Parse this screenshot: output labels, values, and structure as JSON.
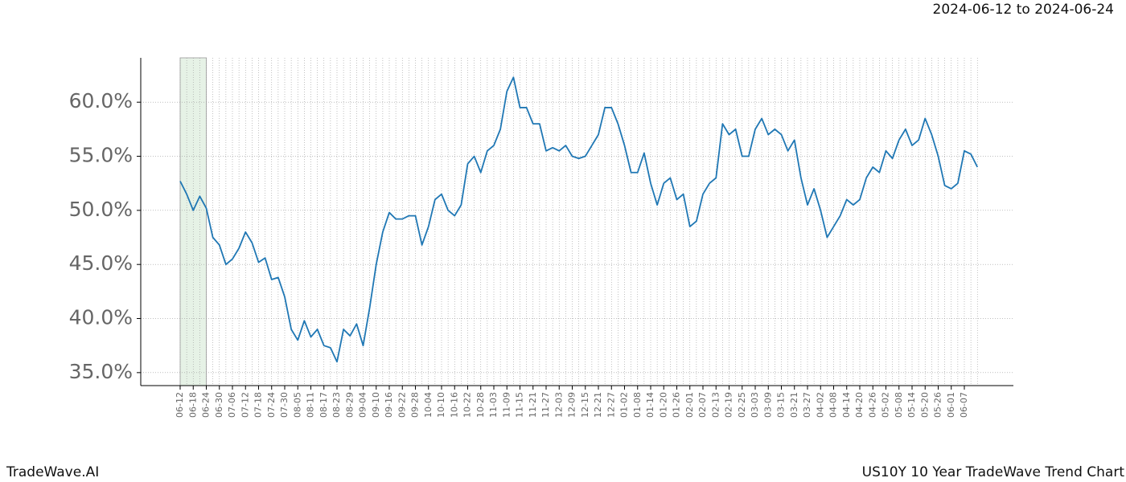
{
  "chart_data": {
    "type": "line",
    "title": "2024-06-12 to 2024-06-24",
    "footer_left": "TradeWave.AI",
    "footer_right": "US10Y 10 Year TradeWave Trend Chart",
    "categories": [
      "06-12",
      null,
      "06-18",
      null,
      "06-24",
      null,
      "06-30",
      null,
      "07-06",
      null,
      "07-12",
      null,
      "07-18",
      null,
      "07-24",
      null,
      "07-30",
      null,
      "08-05",
      null,
      "08-11",
      null,
      "08-17",
      null,
      "08-23",
      null,
      "08-29",
      null,
      "09-04",
      null,
      "09-10",
      null,
      "09-16",
      null,
      "09-22",
      null,
      "09-28",
      null,
      "10-04",
      null,
      "10-10",
      null,
      "10-16",
      null,
      "10-22",
      null,
      "10-28",
      null,
      "11-03",
      null,
      "11-09",
      null,
      "11-15",
      null,
      "11-21",
      null,
      "11-27",
      null,
      "12-03",
      null,
      "12-09",
      null,
      "12-15",
      null,
      "12-21",
      null,
      "12-27",
      null,
      "01-02",
      null,
      "01-08",
      null,
      "01-14",
      null,
      "01-20",
      null,
      "01-26",
      null,
      "02-01",
      null,
      "02-07",
      null,
      "02-13",
      null,
      "02-19",
      null,
      "02-25",
      null,
      "03-03",
      null,
      "03-09",
      null,
      "03-15",
      null,
      "03-21",
      null,
      "03-27",
      null,
      "04-02",
      null,
      "04-08",
      null,
      "04-14",
      null,
      "04-20",
      null,
      "04-26",
      null,
      "05-02",
      null,
      "05-08",
      null,
      "05-14",
      null,
      "05-20",
      null,
      "05-26",
      null,
      "06-01",
      null,
      "06-07",
      null,
      null
    ],
    "values": [
      52.7,
      51.5,
      50.0,
      51.3,
      50.2,
      47.5,
      46.8,
      45.0,
      45.5,
      46.5,
      48.0,
      47.0,
      45.2,
      45.6,
      43.6,
      43.8,
      42.0,
      39.0,
      38.0,
      39.8,
      38.3,
      39.0,
      37.5,
      37.3,
      36.0,
      39.0,
      38.4,
      39.5,
      37.5,
      41.0,
      45.0,
      48.0,
      49.8,
      49.2,
      49.2,
      49.5,
      49.5,
      46.8,
      48.5,
      51.0,
      51.5,
      50.0,
      49.5,
      50.5,
      54.3,
      55.0,
      53.5,
      55.5,
      56.0,
      57.5,
      61.0,
      62.3,
      59.5,
      59.5,
      58.0,
      58.0,
      55.5,
      55.8,
      55.5,
      56.0,
      55.0,
      54.8,
      55.0,
      56.0,
      57.0,
      59.5,
      59.5,
      58.0,
      56.0,
      53.5,
      53.5,
      55.3,
      52.5,
      50.5,
      52.5,
      53.0,
      51.0,
      51.5,
      48.5,
      49.0,
      51.5,
      52.5,
      53.0,
      58.0,
      57.0,
      57.5,
      55.0,
      55.0,
      57.5,
      58.5,
      57.0,
      57.5,
      57.0,
      55.5,
      56.5,
      53.0,
      50.5,
      52.0,
      50.0,
      47.5,
      48.5,
      49.5,
      51.0,
      50.5,
      51.0,
      53.0,
      54.0,
      53.5,
      55.5,
      54.8,
      56.5,
      57.5,
      56.0,
      56.5,
      58.5,
      57.0,
      55.0,
      52.3,
      52.0,
      52.5,
      55.5,
      55.2,
      54.0
    ],
    "color": "#1f77b4",
    "highlight": {
      "from": 0,
      "to": 4,
      "color": "#e6f2e6"
    },
    "ylim": [
      33.8,
      64.1
    ],
    "yticks": [
      {
        "value": 35,
        "label": "35.0%"
      },
      {
        "value": 40,
        "label": "40.0%"
      },
      {
        "value": 45,
        "label": "45.0%"
      },
      {
        "value": 50,
        "label": "50.0%"
      },
      {
        "value": 55,
        "label": "55.0%"
      },
      {
        "value": 60,
        "label": "60.0%"
      }
    ],
    "grid": true
  }
}
